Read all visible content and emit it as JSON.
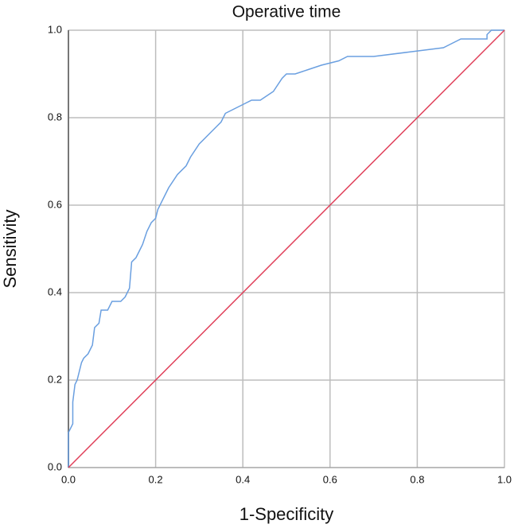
{
  "chart_data": {
    "type": "line",
    "title": "Operative time",
    "x_label": "1-Specificity",
    "y_label": "Sensitivity",
    "xlim": [
      0,
      1
    ],
    "ylim": [
      0,
      1
    ],
    "xticks": [
      {
        "value": 0,
        "label": "0.0"
      },
      0.2,
      0.4,
      0.6,
      0.8,
      {
        "value": 1,
        "label": "1.0"
      }
    ],
    "yticks": [
      {
        "value": 0,
        "label": "0.0"
      },
      0.2,
      0.4,
      0.6,
      0.8,
      {
        "value": 1,
        "label": "1.0"
      }
    ],
    "grid": true,
    "series": [
      {
        "color": "#6a9fe0",
        "x": [
          0,
          0,
          0.005,
          0.01,
          0.01,
          0.015,
          0.02,
          0.025,
          0.03,
          0.035,
          0.045,
          0.055,
          0.06,
          0.07,
          0.075,
          0.09,
          0.1,
          0.12,
          0.13,
          0.14,
          0.145,
          0.155,
          0.165,
          0.17,
          0.18,
          0.19,
          0.2,
          0.205,
          0.22,
          0.23,
          0.25,
          0.27,
          0.28,
          0.3,
          0.32,
          0.34,
          0.35,
          0.36,
          0.38,
          0.4,
          0.42,
          0.44,
          0.47,
          0.49,
          0.5,
          0.52,
          0.55,
          0.58,
          0.62,
          0.64,
          0.7,
          0.78,
          0.86,
          0.88,
          0.9,
          0.96,
          0.96,
          0.97,
          1.0
        ],
        "values": [
          0,
          0.08,
          0.09,
          0.1,
          0.15,
          0.19,
          0.2,
          0.22,
          0.24,
          0.25,
          0.26,
          0.28,
          0.32,
          0.33,
          0.36,
          0.36,
          0.38,
          0.38,
          0.39,
          0.41,
          0.47,
          0.48,
          0.5,
          0.51,
          0.54,
          0.56,
          0.57,
          0.59,
          0.62,
          0.64,
          0.67,
          0.69,
          0.71,
          0.74,
          0.76,
          0.78,
          0.79,
          0.81,
          0.82,
          0.83,
          0.84,
          0.84,
          0.86,
          0.89,
          0.9,
          0.9,
          0.91,
          0.92,
          0.93,
          0.94,
          0.94,
          0.95,
          0.96,
          0.97,
          0.98,
          0.98,
          0.99,
          1.0,
          1.0
        ]
      },
      {
        "color": "#e0405a",
        "x": [
          0,
          1
        ],
        "values": [
          0,
          1
        ]
      }
    ]
  }
}
